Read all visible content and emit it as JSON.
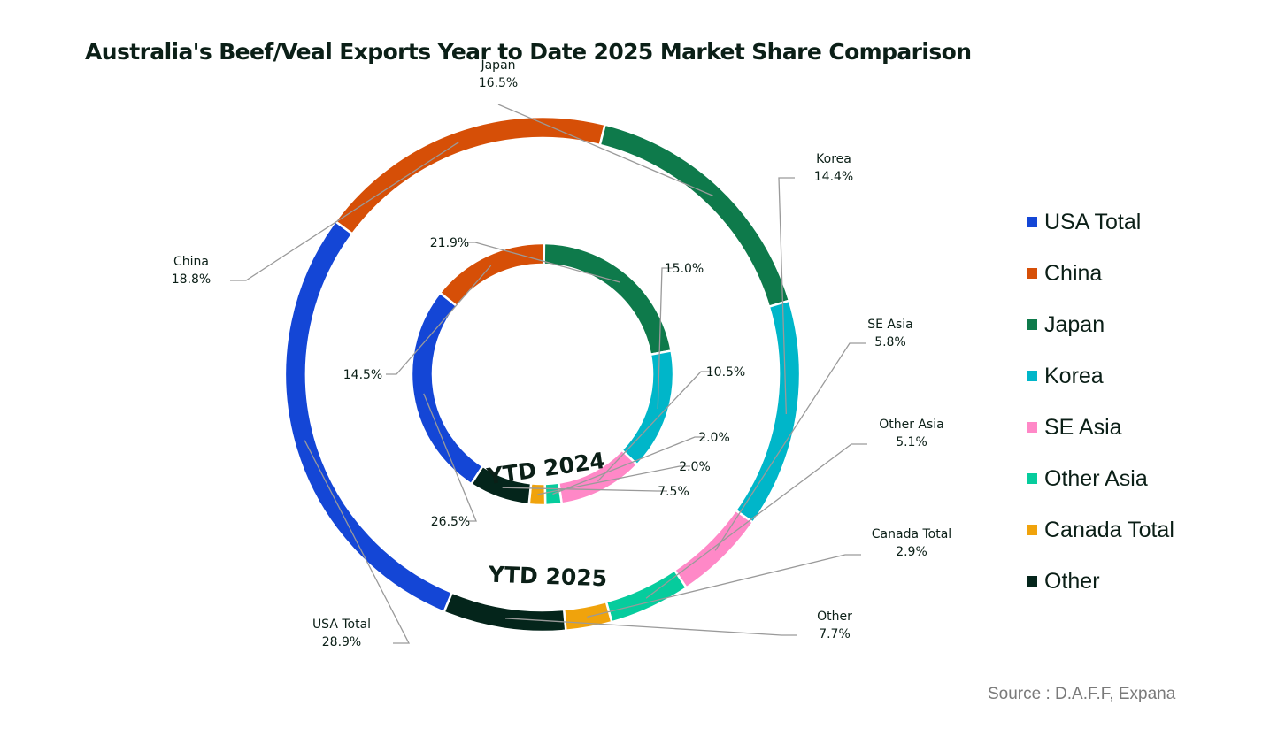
{
  "chart_data": {
    "type": "pie",
    "subtype": "nested-donut",
    "title": "Australia's Beef/Veal Exports Year to Date 2025 Market Share Comparison",
    "source": "Source : D.A.F.F, Expana",
    "categories": [
      "USA Total",
      "China",
      "Japan",
      "Korea",
      "SE Asia",
      "Other Asia",
      "Canada Total",
      "Other"
    ],
    "colors": [
      "#1446d6",
      "#d64f07",
      "#0e7a4b",
      "#00b6c9",
      "#ff88c7",
      "#06cc9d",
      "#f0a30c",
      "#04251b"
    ],
    "series": [
      {
        "name": "YTD 2025",
        "ring": "outer",
        "values": [
          28.9,
          18.8,
          16.5,
          14.4,
          5.8,
          5.1,
          2.9,
          7.7
        ],
        "labels": [
          "28.9%",
          "18.8%",
          "16.5%",
          "14.4%",
          "5.8%",
          "5.1%",
          "2.9%",
          "7.7%"
        ]
      },
      {
        "name": "YTD 2024",
        "ring": "inner",
        "values": [
          26.5,
          14.5,
          21.9,
          15.0,
          10.5,
          2.0,
          2.0,
          7.5
        ],
        "labels": [
          "26.5%",
          "14.5%",
          "21.9%",
          "15.0%",
          "10.5%",
          "2.0%",
          "2.0%",
          "7.5%"
        ]
      }
    ],
    "legend_position": "right",
    "grid": false
  }
}
